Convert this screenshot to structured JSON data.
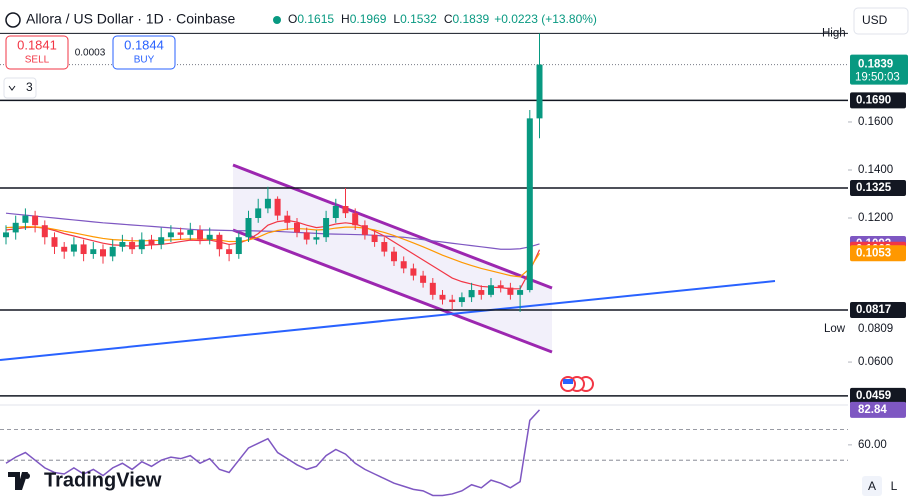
{
  "chart_data": {
    "type": "candlestick",
    "title": "Allora / US Dollar · 1D · Coinbase",
    "ohlc_header": [
      {
        "key": "O",
        "value": "0.1615"
      },
      {
        "key": "H",
        "value": "0.1969"
      },
      {
        "key": "L",
        "value": "0.1532"
      },
      {
        "key": "C",
        "value": "0.1839"
      }
    ],
    "change": "+0.0223 (+13.80%)",
    "trade": {
      "sell_price": "0.1841",
      "sell": "SELL",
      "spread": "0.0003",
      "buy_price": "0.1844",
      "buy": "BUY"
    },
    "indicators_count": "3",
    "currency": "USD",
    "brand": "TradingView",
    "scale_buttons": [
      "A",
      "L"
    ],
    "up_color": "#089981",
    "down_color": "#f23645",
    "ylim": [
      0.0442,
      0.2108
    ],
    "yticks": [
      {
        "value": 0.16,
        "label": "0.1600"
      },
      {
        "value": 0.14,
        "label": "0.1400"
      },
      {
        "value": 0.12,
        "label": "0.1200"
      },
      {
        "value": 0.06,
        "label": "0.0600"
      }
    ],
    "open": [
      0.112,
      0.114,
      0.118,
      0.121,
      0.117,
      0.112,
      0.108,
      0.106,
      0.109,
      0.105,
      0.107,
      0.104,
      0.108,
      0.11,
      0.107,
      0.111,
      0.109,
      0.112,
      0.114,
      0.113,
      0.115,
      0.111,
      0.113,
      0.107,
      0.105,
      0.112,
      0.12,
      0.124,
      0.128,
      0.121,
      0.118,
      0.114,
      0.111,
      0.112,
      0.12,
      0.125,
      0.122,
      0.117,
      0.113,
      0.11,
      0.106,
      0.102,
      0.099,
      0.096,
      0.093,
      0.088,
      0.086,
      0.085,
      0.087,
      0.09,
      0.088,
      0.092,
      0.091,
      0.088,
      0.09,
      0.1615
    ],
    "high": [
      0.117,
      0.121,
      0.124,
      0.123,
      0.119,
      0.114,
      0.11,
      0.112,
      0.111,
      0.11,
      0.109,
      0.111,
      0.113,
      0.112,
      0.114,
      0.113,
      0.116,
      0.117,
      0.116,
      0.118,
      0.117,
      0.116,
      0.114,
      0.109,
      0.114,
      0.123,
      0.128,
      0.133,
      0.129,
      0.123,
      0.12,
      0.116,
      0.115,
      0.123,
      0.128,
      0.1325,
      0.124,
      0.119,
      0.115,
      0.112,
      0.108,
      0.104,
      0.101,
      0.098,
      0.095,
      0.09,
      0.088,
      0.089,
      0.093,
      0.092,
      0.095,
      0.094,
      0.093,
      0.092,
      0.165,
      0.1969
    ],
    "low": [
      0.109,
      0.111,
      0.115,
      0.114,
      0.109,
      0.105,
      0.103,
      0.104,
      0.102,
      0.103,
      0.101,
      0.102,
      0.106,
      0.105,
      0.105,
      0.107,
      0.107,
      0.11,
      0.111,
      0.111,
      0.109,
      0.109,
      0.104,
      0.102,
      0.103,
      0.11,
      0.118,
      0.122,
      0.119,
      0.115,
      0.112,
      0.109,
      0.109,
      0.11,
      0.118,
      0.12,
      0.115,
      0.111,
      0.108,
      0.104,
      0.1,
      0.097,
      0.094,
      0.091,
      0.086,
      0.084,
      0.0817,
      0.083,
      0.085,
      0.086,
      0.087,
      0.089,
      0.086,
      0.0809,
      0.089,
      0.1532
    ],
    "close": [
      0.114,
      0.118,
      0.121,
      0.117,
      0.112,
      0.108,
      0.106,
      0.109,
      0.105,
      0.107,
      0.104,
      0.108,
      0.11,
      0.107,
      0.111,
      0.109,
      0.112,
      0.114,
      0.113,
      0.115,
      0.111,
      0.113,
      0.107,
      0.105,
      0.112,
      0.12,
      0.124,
      0.128,
      0.121,
      0.118,
      0.114,
      0.111,
      0.112,
      0.12,
      0.125,
      0.122,
      0.117,
      0.113,
      0.11,
      0.106,
      0.102,
      0.099,
      0.096,
      0.093,
      0.088,
      0.086,
      0.085,
      0.087,
      0.09,
      0.088,
      0.092,
      0.091,
      0.088,
      0.09,
      0.1615,
      0.1839
    ],
    "series": [
      {
        "color": "#7e57c2",
        "values": [
          0.122,
          0.1216,
          0.1212,
          0.1208,
          0.1204,
          0.12,
          0.1196,
          0.1192,
          0.1188,
          0.1184,
          0.118,
          0.1177,
          0.1174,
          0.1171,
          0.1168,
          0.1165,
          0.1162,
          0.1159,
          0.1156,
          0.1153,
          0.115,
          0.115,
          0.1149,
          0.1148,
          0.1147,
          0.1147,
          0.1146,
          0.1145,
          0.1144,
          0.1142,
          0.114,
          0.1138,
          0.1136,
          0.1134,
          0.1133,
          0.1132,
          0.1131,
          0.113,
          0.1128,
          0.1125,
          0.1122,
          0.112,
          0.1115,
          0.111,
          0.1105,
          0.11,
          0.1095,
          0.109,
          0.1085,
          0.108,
          0.1075,
          0.107,
          0.107,
          0.1072,
          0.108,
          0.1092
        ]
      },
      {
        "color": "#f23645",
        "values": [
          0.115,
          0.1155,
          0.116,
          0.1162,
          0.1158,
          0.1148,
          0.1135,
          0.1125,
          0.1115,
          0.1105,
          0.1095,
          0.1088,
          0.1086,
          0.1082,
          0.1085,
          0.1088,
          0.109,
          0.1095,
          0.1102,
          0.1108,
          0.1106,
          0.1108,
          0.11,
          0.109,
          0.1095,
          0.111,
          0.1135,
          0.117,
          0.1185,
          0.119,
          0.1183,
          0.117,
          0.116,
          0.1165,
          0.1175,
          0.118,
          0.1175,
          0.1162,
          0.1145,
          0.1125,
          0.11,
          0.1075,
          0.105,
          0.1025,
          0.1,
          0.0975,
          0.095,
          0.0935,
          0.0925,
          0.0915,
          0.0912,
          0.091,
          0.0905,
          0.0905,
          0.098,
          0.1068
        ]
      },
      {
        "color": "#ff9800",
        "values": [
          0.116,
          0.1162,
          0.1164,
          0.1163,
          0.116,
          0.1153,
          0.1145,
          0.1138,
          0.113,
          0.1122,
          0.1115,
          0.111,
          0.1108,
          0.1105,
          0.1105,
          0.1106,
          0.1107,
          0.1109,
          0.1111,
          0.1113,
          0.1112,
          0.1112,
          0.1108,
          0.1102,
          0.1102,
          0.1108,
          0.112,
          0.1138,
          0.1148,
          0.1154,
          0.1156,
          0.1154,
          0.115,
          0.1152,
          0.1158,
          0.1162,
          0.1162,
          0.1158,
          0.115,
          0.114,
          0.1127,
          0.1112,
          0.1096,
          0.108,
          0.1063,
          0.1045,
          0.103,
          0.1015,
          0.1002,
          0.099,
          0.098,
          0.097,
          0.096,
          0.0955,
          0.099,
          0.1053
        ]
      }
    ],
    "levels": [
      {
        "value": 0.169,
        "label": "0.1690"
      },
      {
        "value": 0.1325,
        "label": "0.1325"
      },
      {
        "value": 0.0817,
        "label": "0.0817"
      },
      {
        "value": 0.0459,
        "label": "0.0459"
      }
    ],
    "price_labels": [
      {
        "value": 0.1092,
        "label": "0.1092",
        "color": "#7e57c2"
      },
      {
        "value": 0.1068,
        "label": "0.1068",
        "color": "#f23645"
      },
      {
        "value": 0.1053,
        "label": "0.1053",
        "color": "#ff9800"
      }
    ],
    "current_price": {
      "value": 0.1839,
      "label": "0.1839",
      "time": "19:50:03",
      "color": "#089981"
    },
    "high_marker": {
      "value": 0.1969,
      "name": "High"
    },
    "low_marker": {
      "value": 0.0809,
      "name": "Low",
      "label": "0.0809"
    },
    "rsi": {
      "color": "#7e57c2",
      "ylim": [
        26,
        86
      ],
      "yticks": [
        {
          "value": 60,
          "label": "60.00"
        }
      ],
      "bands": [
        70,
        50
      ],
      "values": [
        48,
        52,
        55,
        50,
        45,
        42,
        41,
        45,
        41,
        44,
        40,
        45,
        48,
        44,
        49,
        46,
        50,
        52,
        51,
        53,
        48,
        51,
        44,
        42,
        50,
        58,
        61,
        64,
        55,
        51,
        47,
        44,
        46,
        53,
        57,
        54,
        48,
        44,
        41,
        38,
        35,
        33,
        31,
        30,
        27,
        27,
        28,
        30,
        34,
        32,
        37,
        35,
        32,
        36,
        76,
        82.84
      ],
      "last_label": {
        "value": 82.84,
        "label": "82.84"
      }
    }
  }
}
